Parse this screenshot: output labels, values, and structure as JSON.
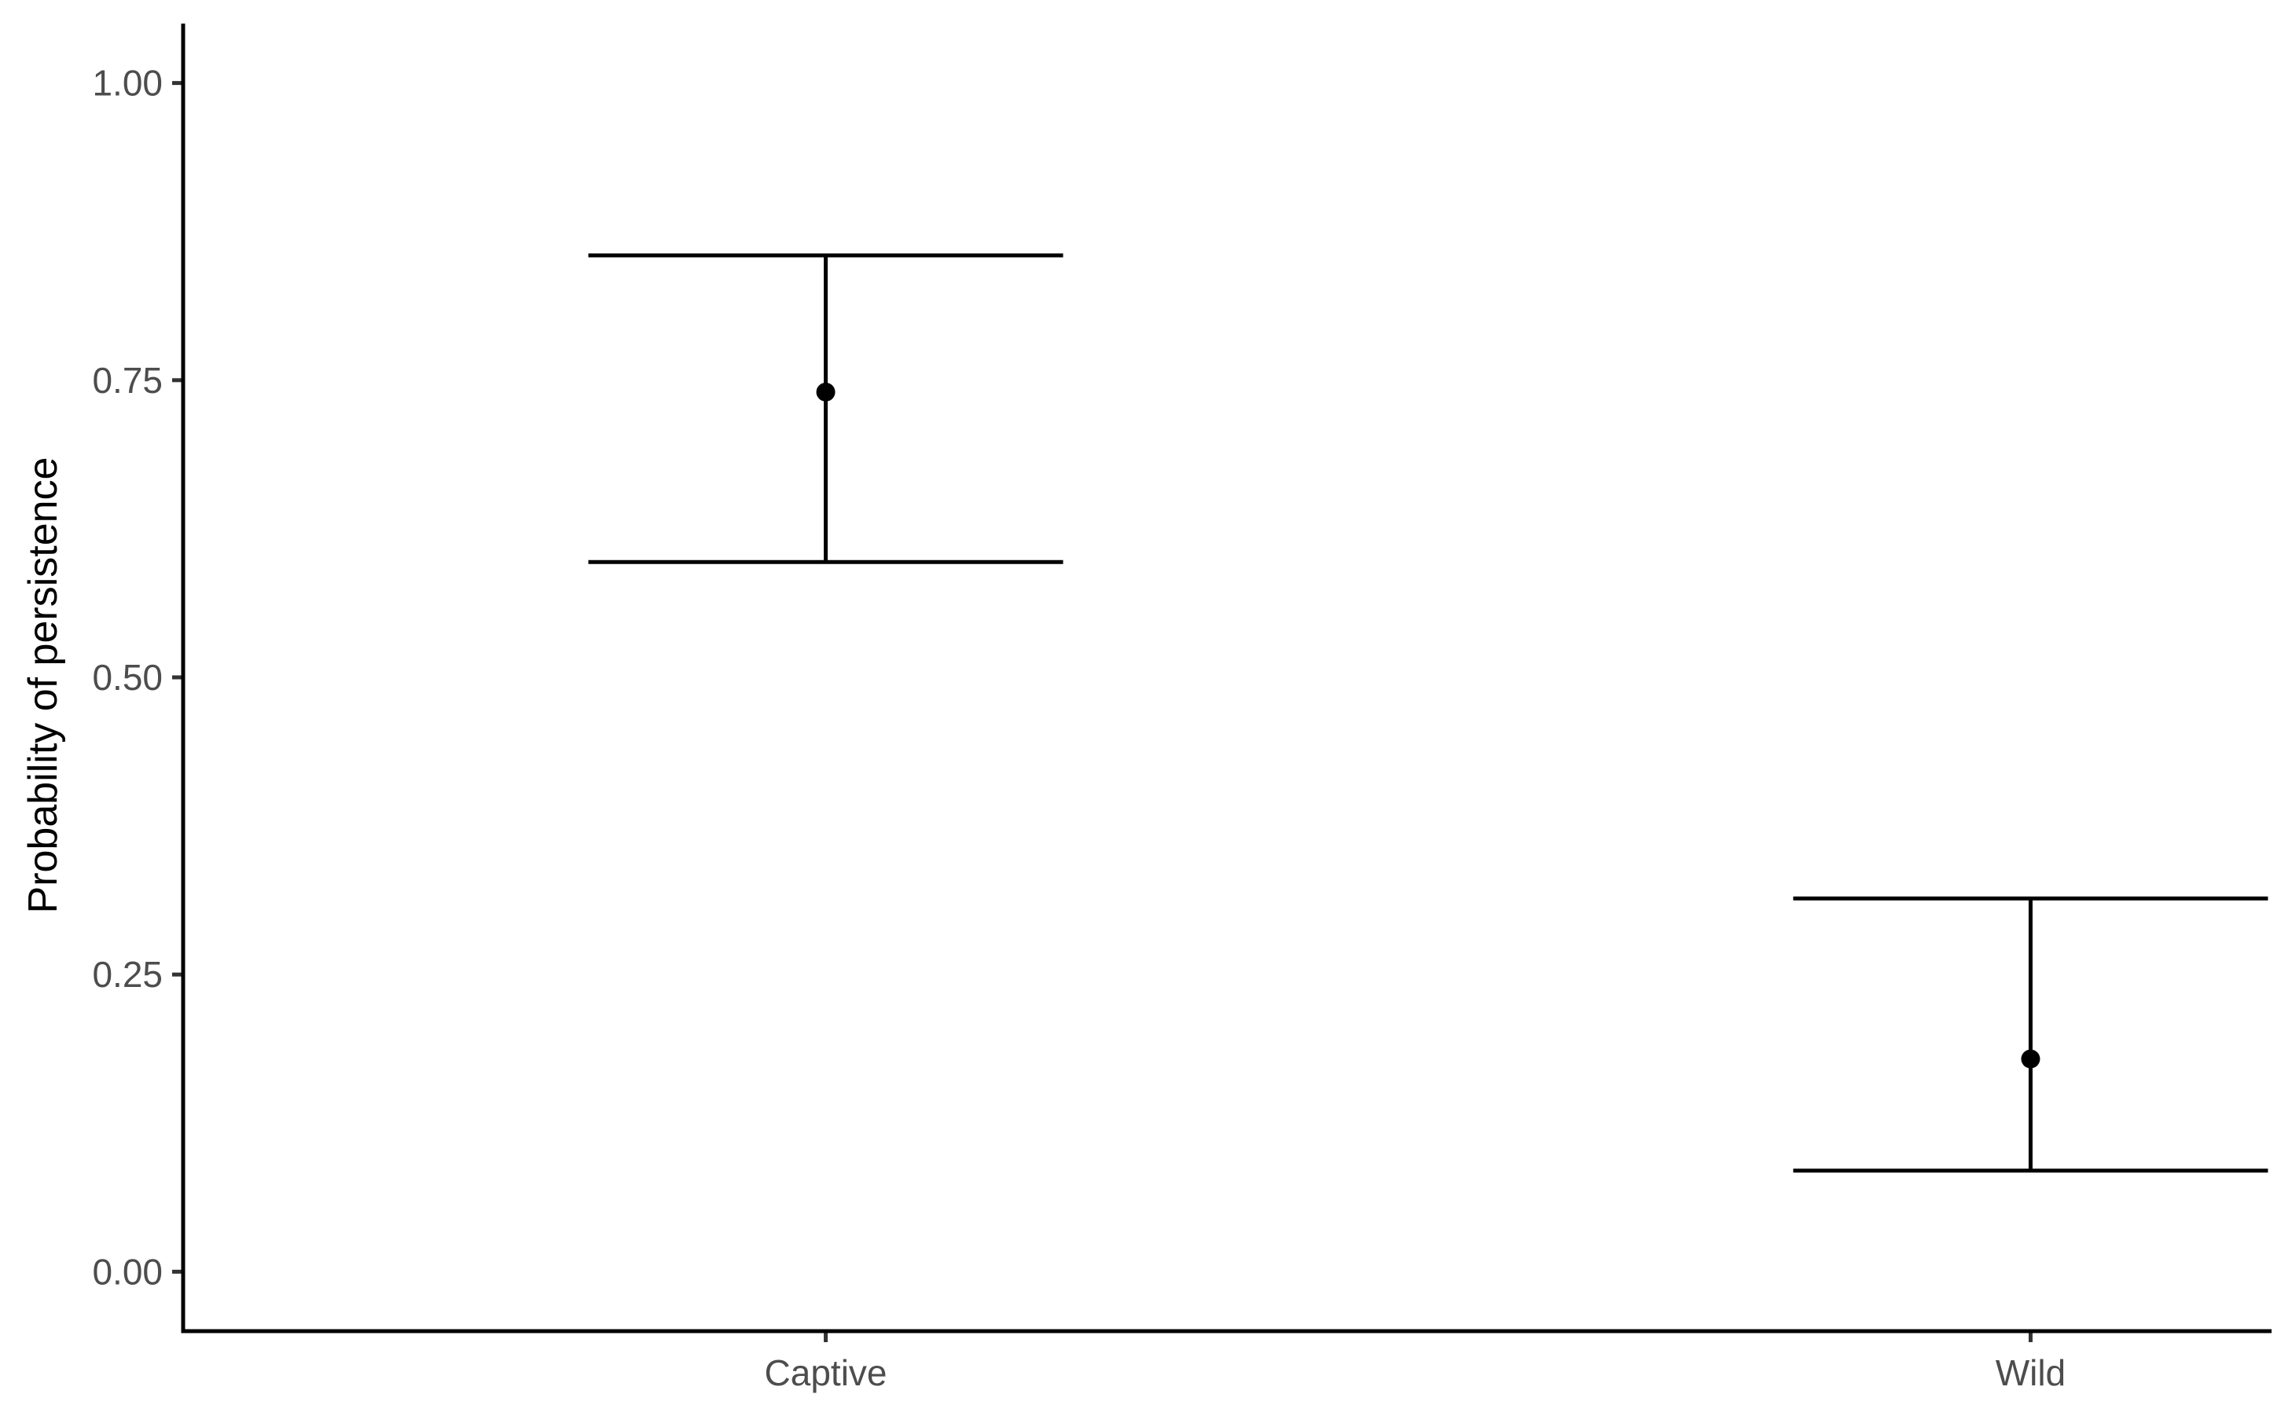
{
  "chart_data": {
    "type": "scatter",
    "title": "",
    "xlabel": "",
    "ylabel": "Probability of persistence",
    "categories": [
      "Captive",
      "Wild"
    ],
    "points": [
      {
        "category": "Captive",
        "value": 0.74,
        "lower": 0.597,
        "upper": 0.855
      },
      {
        "category": "Wild",
        "value": 0.179,
        "lower": 0.085,
        "upper": 0.314
      }
    ],
    "yticks": [
      0.0,
      0.25,
      0.5,
      0.75,
      1.0
    ],
    "ytick_labels": [
      "0.00",
      "0.25",
      "0.50",
      "0.75",
      "1.00"
    ],
    "ylim": [
      -0.05,
      1.05
    ],
    "grid": false,
    "legend": "none",
    "colors": {
      "marks": "#000000",
      "tick_text": "#4d4d4d"
    }
  }
}
